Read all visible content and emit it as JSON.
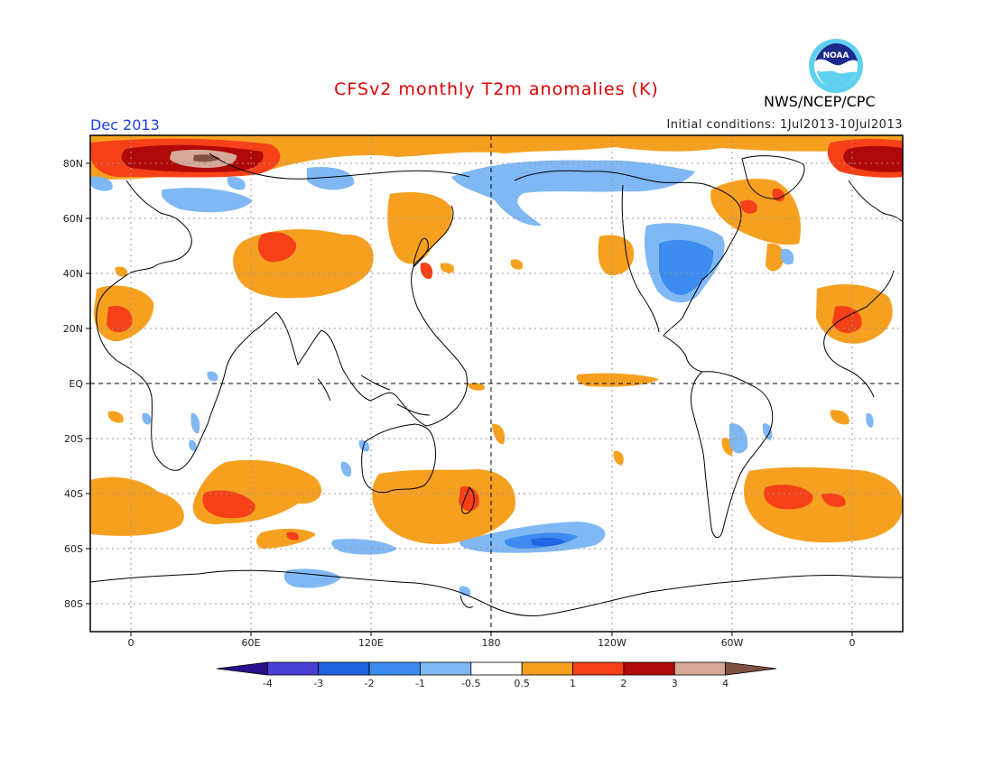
{
  "header": {
    "title": "CFSv2 monthly T2m anomalies (K)",
    "month": "Dec 2013",
    "initial_conditions": "Initial conditions: 1Jul2013-10Jul2013",
    "agency": "NWS/NCEP/CPC",
    "logo_text": "NOAA"
  },
  "axes": {
    "lat_labels": [
      "80N",
      "60N",
      "40N",
      "20N",
      "EQ",
      "20S",
      "40S",
      "60S",
      "80S"
    ],
    "lon_labels": [
      "0",
      "60E",
      "120E",
      "180",
      "120W",
      "60W",
      "0"
    ]
  },
  "colorbar": {
    "colors": [
      "#2a0d8c",
      "#4a3fd4",
      "#1f64e0",
      "#3c8cf0",
      "#7fb8f4",
      "#ffffff",
      "#f6a020",
      "#f54018",
      "#b00808",
      "#d6a898",
      "#805040"
    ],
    "labels": [
      "-4",
      "-3",
      "-2",
      "-1",
      "-0.5",
      "0.5",
      "1",
      "2",
      "3",
      "4"
    ]
  }
}
